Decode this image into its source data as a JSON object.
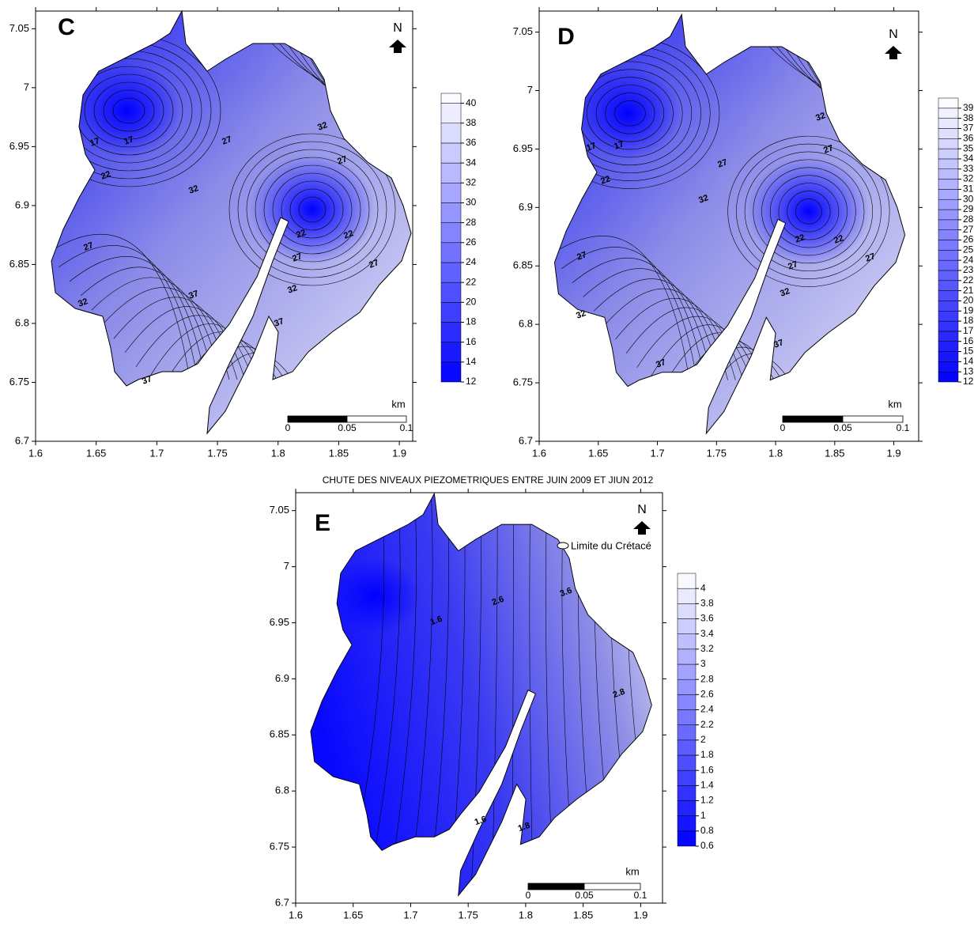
{
  "panels": [
    {
      "label": "C",
      "xlim": [
        1.6,
        1.911
      ],
      "ylim": [
        6.7,
        7.065
      ],
      "xticks": [
        1.6,
        1.65,
        1.7,
        1.75,
        1.8,
        1.85,
        1.9
      ],
      "yticks": [
        6.7,
        6.75,
        6.8,
        6.85,
        6.9,
        6.95,
        7,
        7.05
      ],
      "north": "N",
      "colorbar": {
        "lim": [
          12,
          41
        ],
        "ticks": [
          12,
          14,
          16,
          18,
          20,
          22,
          24,
          26,
          28,
          30,
          32,
          34,
          36,
          38,
          40
        ]
      },
      "scale": {
        "unit": "km",
        "ticks": [
          0,
          0.05,
          0.1
        ]
      },
      "contour_labels": [
        17,
        17,
        22,
        27,
        27,
        32,
        32,
        27,
        22,
        22,
        27,
        27,
        32,
        37,
        32,
        37,
        37
      ]
    },
    {
      "label": "D",
      "xlim": [
        1.6,
        1.921
      ],
      "ylim": [
        6.7,
        7.068
      ],
      "xticks": [
        1.6,
        1.65,
        1.7,
        1.75,
        1.8,
        1.85,
        1.9
      ],
      "yticks": [
        6.7,
        6.75,
        6.8,
        6.85,
        6.9,
        6.95,
        7,
        7.05
      ],
      "north": "N",
      "colorbar": {
        "lim": [
          12,
          40
        ],
        "ticks": [
          12,
          13,
          14,
          15,
          16,
          17,
          18,
          19,
          20,
          21,
          22,
          23,
          24,
          25,
          26,
          27,
          28,
          29,
          30,
          31,
          32,
          33,
          34,
          35,
          36,
          37,
          38,
          39
        ]
      },
      "scale": {
        "unit": "km",
        "ticks": [
          0,
          0.05,
          0.1
        ]
      },
      "contour_labels": [
        17,
        17,
        22,
        27,
        27,
        32,
        32,
        27,
        22,
        22,
        27,
        27,
        32,
        32,
        37,
        37
      ]
    },
    {
      "label": "E",
      "title": "CHUTE DES NIVEAUX PIEZOMETRIQUES ENTRE JUIN 2009 ET JIUN 2012",
      "legend": "Limite du Crétacé",
      "xlim": [
        1.6,
        1.919
      ],
      "ylim": [
        6.7,
        7.066
      ],
      "xticks": [
        1.6,
        1.65,
        1.7,
        1.75,
        1.8,
        1.85,
        1.9
      ],
      "yticks": [
        6.7,
        6.75,
        6.8,
        6.85,
        6.9,
        6.95,
        7,
        7.05
      ],
      "north": "N",
      "colorbar": {
        "lim": [
          0.6,
          4.2
        ],
        "ticks": [
          0.6,
          0.8,
          1,
          1.2,
          1.4,
          1.6,
          1.8,
          2,
          2.2,
          2.4,
          2.6,
          2.8,
          3,
          3.2,
          3.4,
          3.6,
          3.8,
          4
        ]
      },
      "scale": {
        "unit": "km",
        "ticks": [
          0,
          0.05,
          0.1
        ]
      },
      "contour_labels": [
        1.6,
        2.6,
        3.6,
        2.8,
        1.6,
        1.8
      ]
    }
  ]
}
